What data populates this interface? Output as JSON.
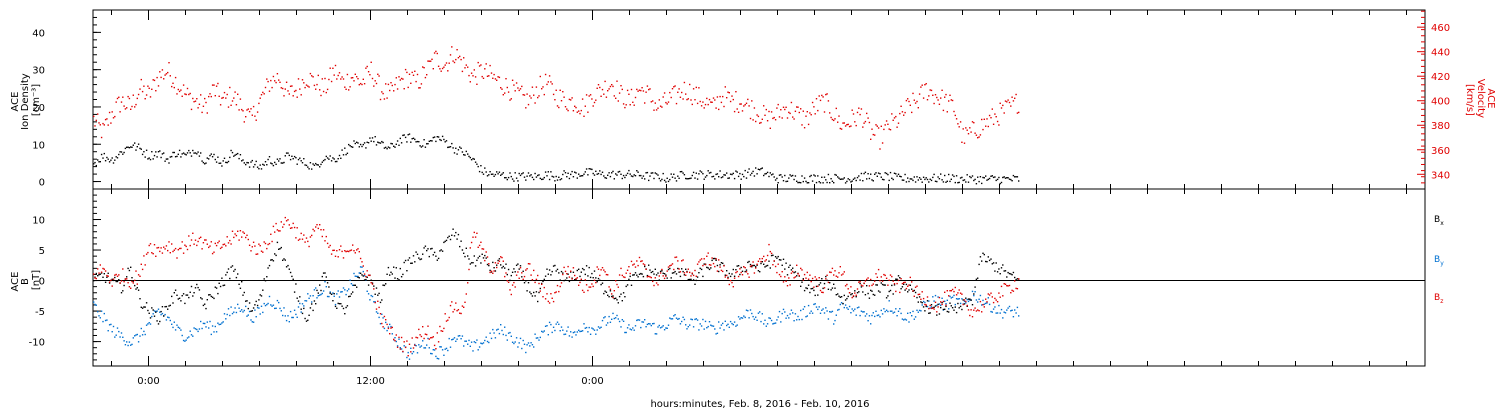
{
  "chart_data": [
    {
      "type": "scatter",
      "panel": "top",
      "ylabel_lines": [
        "ACE",
        "Ion Density",
        "[cm⁻³]"
      ],
      "ylim": [
        -2,
        46
      ],
      "yticks": [
        0,
        10,
        20,
        30,
        40
      ],
      "y2label_lines": [
        "ACE",
        "Velocity",
        "[km/s]"
      ],
      "y2lim": [
        328,
        474
      ],
      "y2ticks": [
        340,
        360,
        380,
        400,
        420,
        440,
        460
      ],
      "colors": {
        "density": "#000000",
        "velocity": "#e00000"
      },
      "series": [
        {
          "key": "density",
          "axis": "left",
          "color": "#000000",
          "x": [
            -3.0,
            -2.5,
            -2.0,
            -1.5,
            -1.0,
            -0.5,
            0.0,
            0.5,
            1.0,
            1.5,
            2.0,
            2.5,
            3.0,
            3.5,
            4.0,
            4.5,
            5.0,
            5.5,
            6.0,
            6.5,
            7.0,
            7.5,
            8.0,
            8.5,
            9.0,
            9.5,
            10.0,
            10.5,
            11.0,
            11.5,
            12.0,
            12.5,
            13.0,
            13.5,
            14.0,
            14.5,
            15.0,
            15.5,
            16.0,
            16.5,
            17.0,
            17.5,
            18.0,
            18.5,
            19.0,
            19.5,
            20.0,
            20.5,
            21.0,
            21.5,
            22.0,
            22.5,
            23.0,
            23.5,
            24.0,
            24.5,
            25.0,
            25.5,
            26.0,
            26.5,
            27.0,
            27.5,
            28.0,
            28.5,
            29.0,
            29.5,
            30.0,
            30.5,
            31.0,
            31.5,
            32.0,
            32.5,
            33.0,
            33.5,
            34.0,
            34.5,
            35.0,
            35.5,
            36.0,
            36.5,
            37.0,
            37.5,
            38.0,
            38.5,
            39.0,
            39.5,
            40.0,
            40.5,
            41.0,
            41.5,
            42.0,
            42.5,
            43.0,
            43.5,
            44.0,
            44.5,
            45.0,
            45.5,
            46.0,
            46.5,
            47.0
          ],
          "y": [
            5,
            7,
            6,
            8,
            10,
            9,
            7,
            8,
            6,
            8,
            7,
            9,
            6,
            7,
            5,
            8,
            6,
            5,
            4,
            6,
            5,
            7,
            6,
            5,
            4,
            7,
            6,
            8,
            10,
            9,
            12,
            10,
            9,
            11,
            12,
            11,
            10,
            12,
            11,
            9,
            8,
            6,
            3,
            2,
            2,
            1.5,
            1.5,
            1.5,
            1.5,
            2,
            1.5,
            2,
            2,
            2.5,
            2.5,
            2,
            2,
            2,
            2,
            2,
            1.5,
            1.5,
            1,
            1.5,
            2,
            2,
            2,
            2,
            2,
            2,
            2,
            2.5,
            3,
            2,
            1,
            1,
            1,
            1,
            1,
            1,
            1,
            1,
            1,
            1.5,
            1.5,
            1.5,
            1.5,
            1,
            1,
            1,
            1,
            1,
            1,
            1,
            0.8,
            0.8,
            0.8,
            0.8,
            0.8,
            0.8,
            0.8
          ]
        },
        {
          "key": "velocity",
          "axis": "right",
          "color": "#e00000",
          "x": [
            -3.0,
            -2.5,
            -2.0,
            -1.5,
            -1.0,
            -0.5,
            0.0,
            0.5,
            1.0,
            1.5,
            2.0,
            2.5,
            3.0,
            3.5,
            4.0,
            4.5,
            5.0,
            5.5,
            6.0,
            6.5,
            7.0,
            7.5,
            8.0,
            8.5,
            9.0,
            9.5,
            10.0,
            10.5,
            11.0,
            11.5,
            12.0,
            12.5,
            13.0,
            13.5,
            14.0,
            14.5,
            15.0,
            15.5,
            16.0,
            16.5,
            17.0,
            17.5,
            18.0,
            18.5,
            19.0,
            19.5,
            20.0,
            20.5,
            21.0,
            21.5,
            22.0,
            22.5,
            23.0,
            23.5,
            24.0,
            24.5,
            25.0,
            25.5,
            26.0,
            26.5,
            27.0,
            27.5,
            28.0,
            28.5,
            29.0,
            29.5,
            30.0,
            30.5,
            31.0,
            31.5,
            32.0,
            32.5,
            33.0,
            33.5,
            34.0,
            34.5,
            35.0,
            35.5,
            36.0,
            36.5,
            37.0,
            37.5,
            38.0,
            38.5,
            39.0,
            39.5,
            40.0,
            40.5,
            41.0,
            41.5,
            42.0,
            42.5,
            43.0,
            43.5,
            44.0,
            44.5,
            45.0,
            45.5,
            46.0,
            46.5,
            47.0
          ],
          "y": [
            385,
            375,
            390,
            400,
            395,
            410,
            405,
            420,
            425,
            415,
            405,
            400,
            395,
            410,
            400,
            405,
            395,
            385,
            400,
            415,
            420,
            405,
            410,
            420,
            415,
            410,
            425,
            415,
            420,
            415,
            425,
            410,
            405,
            415,
            420,
            415,
            425,
            435,
            430,
            440,
            430,
            420,
            425,
            420,
            415,
            410,
            405,
            400,
            410,
            415,
            405,
            400,
            400,
            395,
            405,
            410,
            415,
            405,
            400,
            410,
            405,
            395,
            400,
            405,
            410,
            405,
            400,
            395,
            405,
            400,
            400,
            395,
            390,
            385,
            390,
            395,
            390,
            385,
            395,
            400,
            390,
            380,
            385,
            390,
            375,
            370,
            380,
            385,
            395,
            400,
            410,
            405,
            400,
            395,
            370,
            375,
            380,
            385,
            390,
            395,
            400
          ]
        }
      ]
    },
    {
      "type": "scatter",
      "panel": "bottom",
      "ylabel_lines": [
        "ACE",
        "B",
        "[nT]"
      ],
      "ylim": [
        -14,
        15
      ],
      "yticks": [
        -10,
        -5,
        0,
        5,
        10
      ],
      "zero_line": true,
      "legend": [
        {
          "label": "B",
          "sub": "x",
          "color": "#000000"
        },
        {
          "label": "B",
          "sub": "y",
          "color": "#0070d0"
        },
        {
          "label": "B",
          "sub": "z",
          "color": "#e00000"
        }
      ],
      "series": [
        {
          "key": "Bx",
          "color": "#000000",
          "x": [
            -3.0,
            -2.5,
            -2.0,
            -1.5,
            -1.0,
            -0.5,
            0.0,
            0.5,
            1.0,
            1.5,
            2.0,
            2.5,
            3.0,
            3.5,
            4.0,
            4.5,
            5.0,
            5.5,
            6.0,
            6.5,
            7.0,
            7.5,
            8.0,
            8.5,
            9.0,
            9.5,
            10.0,
            10.5,
            11.0,
            11.5,
            12.0,
            12.5,
            13.0,
            13.5,
            14.0,
            14.5,
            15.0,
            15.5,
            16.0,
            16.5,
            17.0,
            17.5,
            18.0,
            18.5,
            19.0,
            19.5,
            20.0,
            20.5,
            21.0,
            21.5,
            22.0,
            22.5,
            23.0,
            23.5,
            24.0,
            24.5,
            25.0,
            25.5,
            26.0,
            26.5,
            27.0,
            27.5,
            28.0,
            28.5,
            29.0,
            29.5,
            30.0,
            30.5,
            31.0,
            31.5,
            32.0,
            32.5,
            33.0,
            33.5,
            34.0,
            34.5,
            35.0,
            35.5,
            36.0,
            36.5,
            37.0,
            37.5,
            38.0,
            38.5,
            39.0,
            39.5,
            40.0,
            40.5,
            41.0,
            41.5,
            42.0,
            42.5,
            43.0,
            43.5,
            44.0,
            44.5,
            45.0,
            45.5,
            46.0,
            46.5,
            47.0
          ],
          "y": [
            0,
            1,
            0,
            -1,
            2,
            -3,
            -5,
            -6,
            -4,
            -2,
            -3,
            -1,
            -4,
            -2,
            0,
            2,
            -1,
            -5,
            -3,
            3,
            6,
            2,
            -2,
            -6,
            -3,
            1,
            -3,
            -5,
            -2,
            1,
            0,
            -3,
            2,
            1,
            3,
            4,
            5,
            4,
            6,
            8,
            5,
            3,
            4,
            2,
            3,
            1,
            2,
            -1,
            -3,
            1,
            2,
            0,
            1,
            2,
            1,
            -1,
            -2,
            -3,
            0,
            1,
            2,
            1,
            1,
            2,
            1,
            0,
            2,
            3,
            2,
            1,
            2,
            3,
            2,
            3,
            4,
            2,
            1,
            -1,
            -2,
            0,
            -1,
            -3,
            -2,
            -1,
            -2,
            -1,
            -2,
            0,
            -1,
            -3,
            -4,
            -5,
            -4,
            -5,
            -4,
            -3,
            4,
            3,
            2,
            1,
            0
          ]
        },
        {
          "key": "By",
          "color": "#0070d0",
          "x": [
            -3.0,
            -2.5,
            -2.0,
            -1.5,
            -1.0,
            -0.5,
            0.0,
            0.5,
            1.0,
            1.5,
            2.0,
            2.5,
            3.0,
            3.5,
            4.0,
            4.5,
            5.0,
            5.5,
            6.0,
            6.5,
            7.0,
            7.5,
            8.0,
            8.5,
            9.0,
            9.5,
            10.0,
            10.5,
            11.0,
            11.5,
            12.0,
            12.5,
            13.0,
            13.5,
            14.0,
            14.5,
            15.0,
            15.5,
            16.0,
            16.5,
            17.0,
            17.5,
            18.0,
            18.5,
            19.0,
            19.5,
            20.0,
            20.5,
            21.0,
            21.5,
            22.0,
            22.5,
            23.0,
            23.5,
            24.0,
            24.5,
            25.0,
            25.5,
            26.0,
            26.5,
            27.0,
            27.5,
            28.0,
            28.5,
            29.0,
            29.5,
            30.0,
            30.5,
            31.0,
            31.5,
            32.0,
            32.5,
            33.0,
            33.5,
            34.0,
            34.5,
            35.0,
            35.5,
            36.0,
            36.5,
            37.0,
            37.5,
            38.0,
            38.5,
            39.0,
            39.5,
            40.0,
            40.5,
            41.0,
            41.5,
            42.0,
            42.5,
            43.0,
            43.5,
            44.0,
            44.5,
            45.0,
            45.5,
            46.0,
            46.5,
            47.0
          ],
          "y": [
            -4,
            -6,
            -8,
            -9,
            -10,
            -9,
            -7,
            -5,
            -6,
            -8,
            -9,
            -8,
            -7,
            -8,
            -6,
            -5,
            -4,
            -6,
            -5,
            -3,
            -4,
            -6,
            -5,
            -3,
            -2,
            -1,
            -3,
            -2,
            0,
            2,
            -3,
            -6,
            -8,
            -10,
            -12,
            -11,
            -10,
            -12,
            -11,
            -9,
            -10,
            -11,
            -10,
            -9,
            -8,
            -9,
            -10,
            -11,
            -9,
            -8,
            -7,
            -8,
            -9,
            -7,
            -8,
            -7,
            -6,
            -7,
            -8,
            -7,
            -7,
            -8,
            -7,
            -6,
            -7,
            -7,
            -7,
            -8,
            -7,
            -7,
            -6,
            -5,
            -6,
            -7,
            -6,
            -5,
            -6,
            -5,
            -4,
            -5,
            -6,
            -4,
            -5,
            -5,
            -6,
            -5,
            -4,
            -5,
            -6,
            -5,
            -4,
            -3,
            -4,
            -3,
            -4,
            -2,
            -3,
            -4,
            -5,
            -5,
            -5
          ]
        },
        {
          "key": "Bz",
          "color": "#e00000",
          "x": [
            -3.0,
            -2.5,
            -2.0,
            -1.5,
            -1.0,
            -0.5,
            0.0,
            0.5,
            1.0,
            1.5,
            2.0,
            2.5,
            3.0,
            3.5,
            4.0,
            4.5,
            5.0,
            5.5,
            6.0,
            6.5,
            7.0,
            7.5,
            8.0,
            8.5,
            9.0,
            9.5,
            10.0,
            10.5,
            11.0,
            11.5,
            12.0,
            12.5,
            13.0,
            13.5,
            14.0,
            14.5,
            15.0,
            15.5,
            16.0,
            16.5,
            17.0,
            17.5,
            18.0,
            18.5,
            19.0,
            19.5,
            20.0,
            20.5,
            21.0,
            21.5,
            22.0,
            22.5,
            23.0,
            23.5,
            24.0,
            24.5,
            25.0,
            25.5,
            26.0,
            26.5,
            27.0,
            27.5,
            28.0,
            28.5,
            29.0,
            29.5,
            30.0,
            30.5,
            31.0,
            31.5,
            32.0,
            32.5,
            33.0,
            33.5,
            34.0,
            34.5,
            35.0,
            35.5,
            36.0,
            36.5,
            37.0,
            37.5,
            38.0,
            38.5,
            39.0,
            39.5,
            40.0,
            40.5,
            41.0,
            41.5,
            42.0,
            42.5,
            43.0,
            43.5,
            44.0,
            44.5,
            45.0,
            45.5,
            46.0,
            46.5,
            47.0
          ],
          "y": [
            1,
            2,
            0,
            1,
            0,
            1,
            6,
            5,
            6,
            5,
            6,
            7,
            6,
            5,
            6,
            7,
            8,
            6,
            5,
            7,
            9,
            10,
            8,
            6,
            9,
            7,
            4,
            5,
            6,
            3,
            0,
            -6,
            -8,
            -10,
            -11,
            -9,
            -8,
            -10,
            -6,
            -4,
            -5,
            8,
            5,
            2,
            4,
            -2,
            1,
            2,
            0,
            -3,
            -2,
            2,
            1,
            -1,
            0,
            3,
            -2,
            1,
            2,
            3,
            1,
            0,
            2,
            3,
            2,
            1,
            4,
            3,
            2,
            0,
            1,
            2,
            3,
            5,
            2,
            -1,
            2,
            1,
            0,
            -1,
            2,
            1,
            -2,
            -1,
            0,
            1,
            0,
            -1,
            0,
            -2,
            -3,
            -4,
            -3,
            -2,
            -3,
            -5,
            -4,
            -3,
            -2,
            -1,
            0
          ]
        }
      ]
    }
  ],
  "xaxis": {
    "xlim": [
      -3,
      69
    ],
    "tick_hours": [
      0,
      12,
      24
    ],
    "tick_labels": [
      "0:00",
      "12:00",
      "0:00"
    ],
    "minor_every_hours": 2,
    "xlabel": "hours:minutes, Feb.  8, 2016 - Feb. 10, 2016"
  }
}
